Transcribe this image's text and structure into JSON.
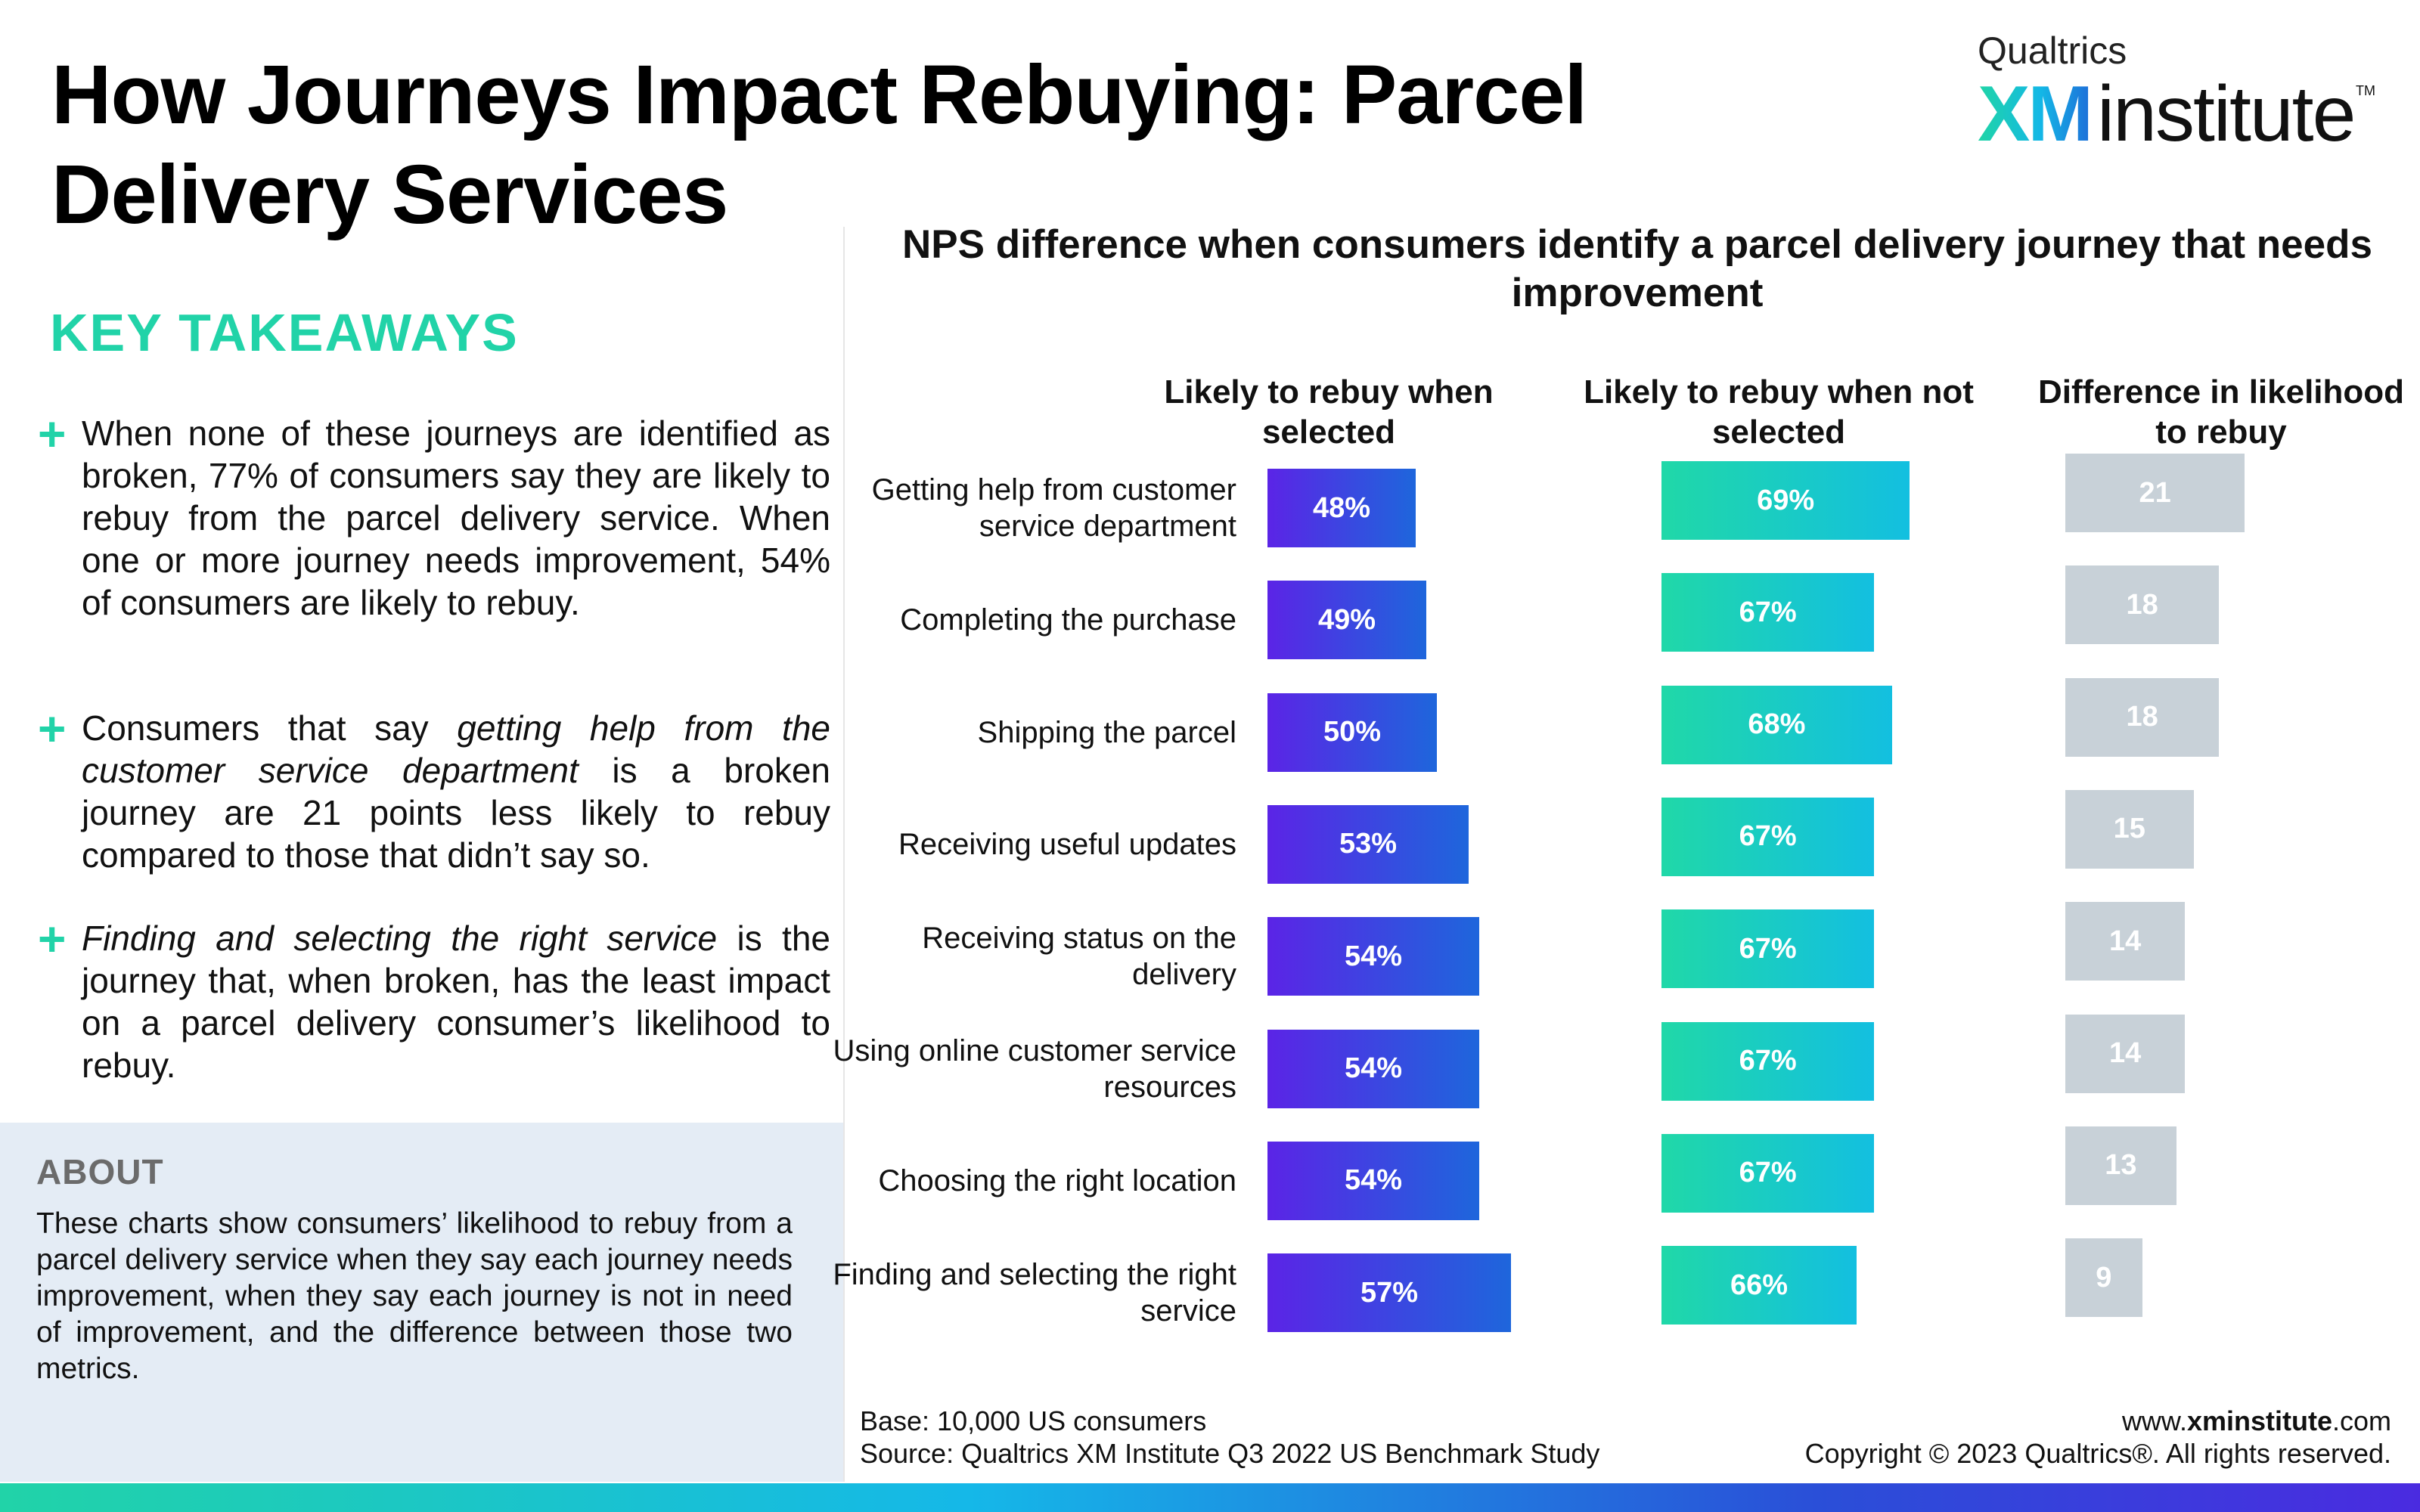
{
  "title": "How Journeys Impact Rebuying: Parcel Delivery Services",
  "logo": {
    "top": "Qualtrics",
    "xm": "XM",
    "institute": "institute",
    "tm": "TM"
  },
  "key_takeaways": {
    "heading": "KEY TAKEAWAYS",
    "bullet1": "When none of these journeys are identified as broken, 77% of consumers say they are likely to rebuy from the parcel delivery service. When one or more journey needs improvement, 54% of consumers are likely to rebuy.",
    "bullet2_pre": "Consumers that say ",
    "bullet2_em": "getting help from the customer service department",
    "bullet2_post": " is a broken journey are 21 points less likely to rebuy compared to those that didn’t say so.",
    "bullet3_em": "Finding and selecting the right service",
    "bullet3_post": " is the journey that, when broken, has the least impact on a parcel delivery consumer’s likelihood to rebuy."
  },
  "about": {
    "heading": "ABOUT",
    "text": "These charts show consumers’ likelihood to rebuy from a parcel delivery service when they say each journey needs improvement, when they say each journey is not in need of improvement, and the difference between those two metrics."
  },
  "chart_data": {
    "type": "bar",
    "title": "NPS difference when consumers identify a parcel delivery journey that needs improvement",
    "categories": [
      "Getting help from customer service department",
      "Completing the purchase",
      "Shipping the parcel",
      "Receiving useful updates",
      "Receiving status on the delivery",
      "Using online customer service resources",
      "Choosing the right location",
      "Finding and selecting the right service"
    ],
    "series": [
      {
        "name": "Likely to rebuy when selected",
        "values": [
          48,
          49,
          50,
          53,
          54,
          54,
          54,
          57
        ],
        "unit": "%",
        "color": "#5b24e6"
      },
      {
        "name": "Likely to rebuy when not selected",
        "values": [
          69,
          67,
          68,
          67,
          67,
          67,
          67,
          66
        ],
        "unit": "%",
        "color": "#20d8a8"
      },
      {
        "name": "Difference in likelihood to rebuy",
        "values": [
          21,
          18,
          18,
          15,
          14,
          14,
          13,
          9
        ],
        "unit": "",
        "color": "#c8d1d8"
      }
    ],
    "labels": {
      "col1": "Likely to rebuy when selected",
      "col2": "Likely to rebuy when not selected",
      "col3": "Difference in likelihood to rebuy"
    }
  },
  "footer": {
    "base": "Base: 10,000 US consumers",
    "source": "Source: Qualtrics XM Institute Q3 2022 US Benchmark Study",
    "www": "www.",
    "domain": "xminstitute",
    "tld": ".com",
    "copyright": "Copyright © 2023 Qualtrics®. All rights reserved."
  }
}
